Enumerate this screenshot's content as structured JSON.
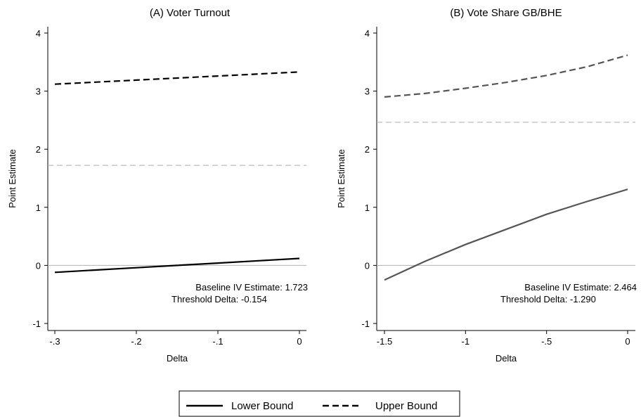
{
  "chart_data": [
    {
      "type": "line",
      "title": "(A) Voter Turnout",
      "xlabel": "Delta",
      "ylabel": "Point Estimate",
      "xlim": [
        -0.3,
        0
      ],
      "ylim": [
        -1,
        4
      ],
      "x_ticks": [
        "-.3",
        "-.2",
        "-.1",
        "0"
      ],
      "x_tick_values": [
        -0.3,
        -0.2,
        -0.1,
        0
      ],
      "y_ticks": [
        "-1",
        "0",
        "1",
        "2",
        "3",
        "4"
      ],
      "y_tick_values": [
        -1,
        0,
        1,
        2,
        3,
        4
      ],
      "grid": false,
      "zero_line": 0,
      "baseline": 1.723,
      "series": [
        {
          "name": "Lower Bound",
          "style": "solid",
          "color": "#000000",
          "x": [
            -0.3,
            -0.25,
            -0.2,
            -0.15,
            -0.1,
            -0.05,
            0
          ],
          "y": [
            -0.12,
            -0.08,
            -0.04,
            0.0,
            0.04,
            0.08,
            0.12
          ]
        },
        {
          "name": "Upper Bound",
          "style": "dashed",
          "color": "#000000",
          "x": [
            -0.3,
            -0.25,
            -0.2,
            -0.15,
            -0.1,
            -0.05,
            0
          ],
          "y": [
            3.12,
            3.155,
            3.19,
            3.225,
            3.26,
            3.295,
            3.33
          ]
        }
      ],
      "annotations": [
        "Baseline IV Estimate: 1.723",
        "Threshold Delta: -0.154"
      ]
    },
    {
      "type": "line",
      "title": "(B) Vote Share GB/BHE",
      "xlabel": "Delta",
      "ylabel": "Point Estimate",
      "xlim": [
        -1.5,
        0
      ],
      "ylim": [
        -1,
        4
      ],
      "x_ticks": [
        "-1.5",
        "-1",
        "-.5",
        "0"
      ],
      "x_tick_values": [
        -1.5,
        -1,
        -0.5,
        0
      ],
      "y_ticks": [
        "-1",
        "0",
        "1",
        "2",
        "3",
        "4"
      ],
      "y_tick_values": [
        -1,
        0,
        1,
        2,
        3,
        4
      ],
      "grid": false,
      "zero_line": 0,
      "baseline": 2.464,
      "series": [
        {
          "name": "Lower Bound",
          "style": "solid",
          "color": "#555555",
          "x": [
            -1.5,
            -1.25,
            -1.0,
            -0.75,
            -0.5,
            -0.25,
            0
          ],
          "y": [
            -0.25,
            0.07,
            0.36,
            0.62,
            0.88,
            1.1,
            1.31
          ]
        },
        {
          "name": "Upper Bound",
          "style": "dashed",
          "color": "#555555",
          "x": [
            -1.5,
            -1.25,
            -1.0,
            -0.75,
            -0.5,
            -0.25,
            0
          ],
          "y": [
            2.9,
            2.96,
            3.05,
            3.15,
            3.27,
            3.42,
            3.62
          ]
        }
      ],
      "annotations": [
        "Baseline IV Estimate: 2.464",
        "Threshold Delta: -1.290"
      ]
    }
  ],
  "legend": {
    "placement": "bottom",
    "items": [
      {
        "label": "Lower Bound",
        "style": "solid"
      },
      {
        "label": "Upper Bound",
        "style": "dashed"
      }
    ]
  }
}
